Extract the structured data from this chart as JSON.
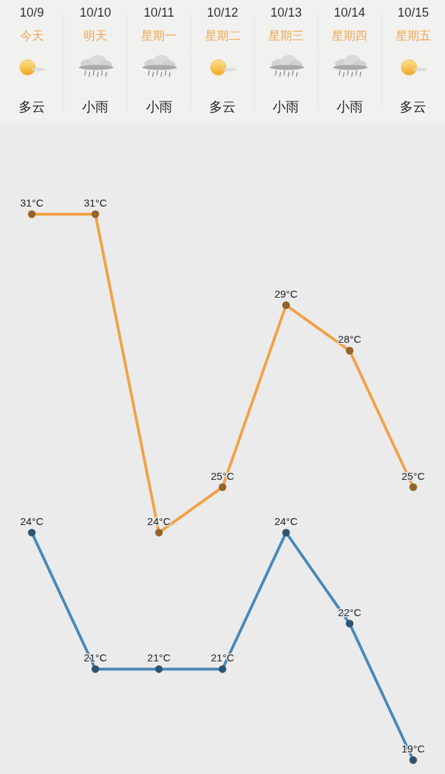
{
  "chart_data": {
    "type": "line",
    "categories": [
      "10/9\n今天",
      "10/10\n明天",
      "10/11\n星期一",
      "10/12\n星期二",
      "10/13\n星期三",
      "10/14\n星期四",
      "10/15\n星期五"
    ],
    "annotations": [
      "多云",
      "小雨",
      "小雨",
      "多云",
      "小雨",
      "小雨",
      "多云"
    ],
    "series": [
      {
        "color": "#f0a244",
        "values": [
          31,
          31,
          24,
          25,
          29,
          28,
          25
        ],
        "value_labels": [
          "31°C",
          "31°C",
          "24°C",
          "25°C",
          "29°C",
          "28°C",
          "25°C"
        ]
      },
      {
        "color": "#4a88b8",
        "values": [
          24,
          21,
          21,
          21,
          24,
          22,
          19
        ],
        "value_labels": [
          "24°C",
          "21°C",
          "21°C",
          "21°C",
          "24°C",
          "22°C",
          "19°C"
        ]
      }
    ],
    "tick_labels": "x",
    "marker": "circle",
    "line_style": "solid"
  }
}
